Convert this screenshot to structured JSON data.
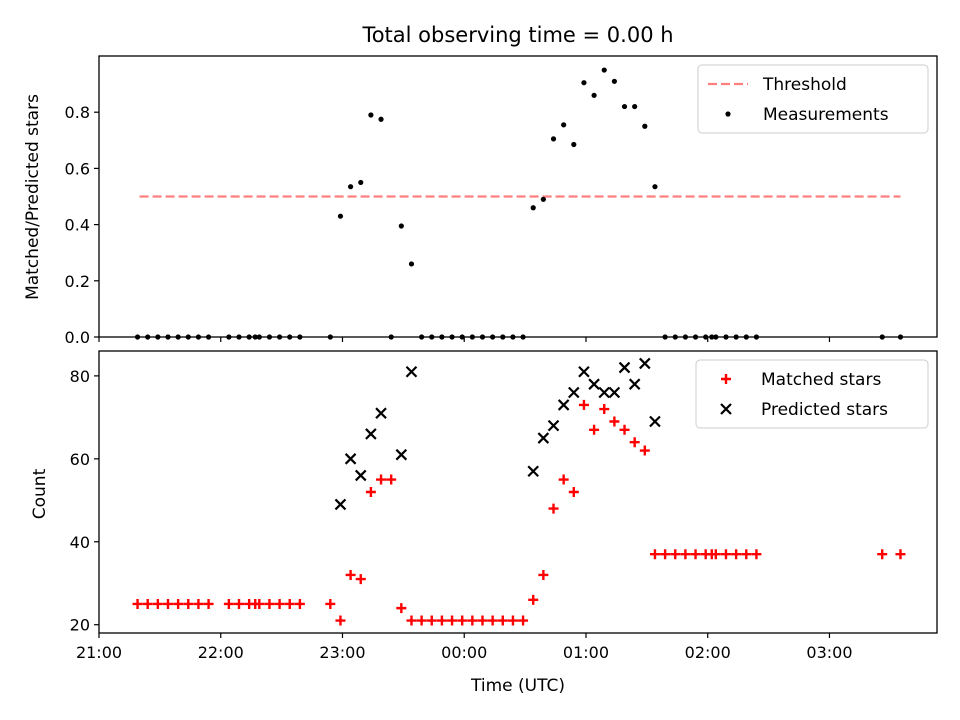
{
  "chart_data": [
    {
      "type": "scatter",
      "title": "Total observing time = 0.00 h",
      "ylabel": "Matched/Predicted stars",
      "xlim": [
        "21:00",
        "03:53"
      ],
      "ylim": [
        0,
        1.0
      ],
      "yticks": [
        "0.0",
        "0.2",
        "0.4",
        "0.6",
        "0.8"
      ],
      "ytick_values": [
        0,
        0.2,
        0.4,
        0.6,
        0.8
      ],
      "grid": false,
      "legend_position": "top-right",
      "threshold": {
        "name": "Threshold",
        "value": 0.5,
        "x_range": [
          "21:20",
          "03:35"
        ],
        "color": "#ff7f7f",
        "style": "dashed"
      },
      "series": [
        {
          "name": "Measurements",
          "color": "#000000",
          "marker": "dot",
          "points": [
            [
              "21:19",
              0
            ],
            [
              "21:24",
              0
            ],
            [
              "21:29",
              0
            ],
            [
              "21:34",
              0
            ],
            [
              "21:39",
              0
            ],
            [
              "21:44",
              0
            ],
            [
              "21:49",
              0
            ],
            [
              "21:54",
              0
            ],
            [
              "22:04",
              0
            ],
            [
              "22:09",
              0
            ],
            [
              "22:14",
              0
            ],
            [
              "22:17",
              0
            ],
            [
              "22:19",
              0
            ],
            [
              "22:24",
              0
            ],
            [
              "22:29",
              0
            ],
            [
              "22:34",
              0
            ],
            [
              "22:39",
              0
            ],
            [
              "22:54",
              0
            ],
            [
              "22:59",
              0.43
            ],
            [
              "23:04",
              0.535
            ],
            [
              "23:09",
              0.55
            ],
            [
              "23:14",
              0.79
            ],
            [
              "23:19",
              0.775
            ],
            [
              "23:24",
              0
            ],
            [
              "23:29",
              0.395
            ],
            [
              "23:34",
              0.26
            ],
            [
              "23:39",
              0
            ],
            [
              "23:44",
              0
            ],
            [
              "23:49",
              0
            ],
            [
              "23:54",
              0
            ],
            [
              "23:59",
              0
            ],
            [
              "00:04",
              0
            ],
            [
              "00:09",
              0
            ],
            [
              "00:14",
              0
            ],
            [
              "00:19",
              0
            ],
            [
              "00:24",
              0
            ],
            [
              "00:29",
              0
            ],
            [
              "00:34",
              0.46
            ],
            [
              "00:39",
              0.49
            ],
            [
              "00:44",
              0.705
            ],
            [
              "00:49",
              0.755
            ],
            [
              "00:54",
              0.685
            ],
            [
              "00:59",
              0.905
            ],
            [
              "01:04",
              0.86
            ],
            [
              "01:09",
              0.95
            ],
            [
              "01:14",
              0.91
            ],
            [
              "01:19",
              0.82
            ],
            [
              "01:24",
              0.82
            ],
            [
              "01:29",
              0.75
            ],
            [
              "01:34",
              0.535
            ],
            [
              "01:39",
              0
            ],
            [
              "01:44",
              0
            ],
            [
              "01:49",
              0
            ],
            [
              "01:54",
              0
            ],
            [
              "01:59",
              0
            ],
            [
              "02:02",
              0
            ],
            [
              "02:04",
              0
            ],
            [
              "02:09",
              0
            ],
            [
              "02:14",
              0
            ],
            [
              "02:19",
              0
            ],
            [
              "02:24",
              0
            ],
            [
              "03:26",
              0
            ],
            [
              "03:35",
              0
            ]
          ]
        }
      ]
    },
    {
      "type": "scatter",
      "xlabel": "Time (UTC)",
      "ylabel": "Count",
      "xlim": [
        "21:00",
        "03:53"
      ],
      "ylim": [
        18,
        86
      ],
      "xticks": [
        "21:00",
        "22:00",
        "23:00",
        "00:00",
        "01:00",
        "02:00",
        "03:00"
      ],
      "yticks": [
        "20",
        "40",
        "60",
        "80"
      ],
      "ytick_values": [
        20,
        40,
        60,
        80
      ],
      "grid": false,
      "legend_position": "top-right",
      "series": [
        {
          "name": "Matched stars",
          "color": "#ff0000",
          "marker": "plus",
          "points": [
            [
              "21:19",
              25
            ],
            [
              "21:24",
              25
            ],
            [
              "21:29",
              25
            ],
            [
              "21:34",
              25
            ],
            [
              "21:39",
              25
            ],
            [
              "21:44",
              25
            ],
            [
              "21:49",
              25
            ],
            [
              "21:54",
              25
            ],
            [
              "22:04",
              25
            ],
            [
              "22:09",
              25
            ],
            [
              "22:14",
              25
            ],
            [
              "22:17",
              25
            ],
            [
              "22:19",
              25
            ],
            [
              "22:24",
              25
            ],
            [
              "22:29",
              25
            ],
            [
              "22:34",
              25
            ],
            [
              "22:39",
              25
            ],
            [
              "22:54",
              25
            ],
            [
              "22:59",
              21
            ],
            [
              "23:04",
              32
            ],
            [
              "23:09",
              31
            ],
            [
              "23:14",
              52
            ],
            [
              "23:19",
              55
            ],
            [
              "23:24",
              55
            ],
            [
              "23:29",
              24
            ],
            [
              "23:34",
              21
            ],
            [
              "23:39",
              21
            ],
            [
              "23:44",
              21
            ],
            [
              "23:49",
              21
            ],
            [
              "23:54",
              21
            ],
            [
              "23:59",
              21
            ],
            [
              "00:04",
              21
            ],
            [
              "00:09",
              21
            ],
            [
              "00:14",
              21
            ],
            [
              "00:19",
              21
            ],
            [
              "00:24",
              21
            ],
            [
              "00:29",
              21
            ],
            [
              "00:34",
              26
            ],
            [
              "00:39",
              32
            ],
            [
              "00:44",
              48
            ],
            [
              "00:49",
              55
            ],
            [
              "00:54",
              52
            ],
            [
              "00:59",
              73
            ],
            [
              "01:04",
              67
            ],
            [
              "01:09",
              72
            ],
            [
              "01:14",
              69
            ],
            [
              "01:19",
              67
            ],
            [
              "01:24",
              64
            ],
            [
              "01:29",
              62
            ],
            [
              "01:34",
              37
            ],
            [
              "01:39",
              37
            ],
            [
              "01:44",
              37
            ],
            [
              "01:49",
              37
            ],
            [
              "01:54",
              37
            ],
            [
              "01:59",
              37
            ],
            [
              "02:02",
              37
            ],
            [
              "02:04",
              37
            ],
            [
              "02:09",
              37
            ],
            [
              "02:14",
              37
            ],
            [
              "02:19",
              37
            ],
            [
              "02:24",
              37
            ],
            [
              "03:26",
              37
            ],
            [
              "03:35",
              37
            ]
          ]
        },
        {
          "name": "Predicted stars",
          "color": "#000000",
          "marker": "x",
          "points": [
            [
              "22:59",
              49
            ],
            [
              "23:04",
              60
            ],
            [
              "23:09",
              56
            ],
            [
              "23:14",
              66
            ],
            [
              "23:19",
              71
            ],
            [
              "23:29",
              61
            ],
            [
              "23:34",
              81
            ],
            [
              "00:34",
              57
            ],
            [
              "00:39",
              65
            ],
            [
              "00:44",
              68
            ],
            [
              "00:49",
              73
            ],
            [
              "00:54",
              76
            ],
            [
              "00:59",
              81
            ],
            [
              "01:04",
              78
            ],
            [
              "01:09",
              76
            ],
            [
              "01:14",
              76
            ],
            [
              "01:19",
              82
            ],
            [
              "01:24",
              78
            ],
            [
              "01:29",
              83
            ],
            [
              "01:34",
              69
            ]
          ]
        }
      ]
    }
  ]
}
